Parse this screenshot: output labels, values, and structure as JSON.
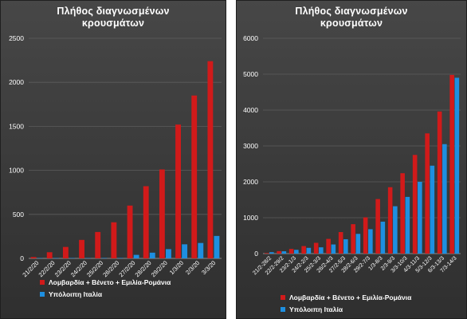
{
  "colors": {
    "red": "#d11a1a",
    "blue": "#1e8fe0"
  },
  "chart_data": [
    {
      "type": "bar",
      "title_lines": [
        "Πλήθος διαγνωσμένων",
        "κρουσμάτων"
      ],
      "categories": [
        "21/2/20",
        "22/2/20",
        "23/2/20",
        "24/2/20",
        "25/2/20",
        "26/2/20",
        "27/2/20",
        "28/2/20",
        "29/2/20",
        "1/3/20",
        "2/3/20",
        "3/3/20"
      ],
      "series": [
        {
          "name": "Λομβαρδία + Βένετο + Εμιλία-Ρομάνια",
          "color": "#d11a1a",
          "values": [
            15,
            70,
            130,
            210,
            300,
            410,
            600,
            820,
            1010,
            1520,
            1850,
            2240
          ]
        },
        {
          "name": "Υπόλοιπη Ιταλία",
          "color": "#1e8fe0",
          "values": [
            0,
            0,
            2,
            2,
            5,
            5,
            40,
            65,
            105,
            160,
            175,
            255
          ]
        }
      ],
      "yticks": [
        0,
        500,
        1000,
        1500,
        2000,
        2500
      ],
      "ylim": [
        0,
        2500
      ],
      "grid": true,
      "legend_position": "bottom"
    },
    {
      "type": "bar",
      "title_lines": [
        "Πλήθος διαγνωσμένων",
        "κρουσμάτων"
      ],
      "categories": [
        "21/2-28/2",
        "22/2-29/2",
        "23/2-1/3",
        "24/2-2/3",
        "25/2-3/3",
        "26/2-4/3",
        "27/2-5/3",
        "28/2-6/3",
        "29/2-7/3",
        "1/3-8/3",
        "2/3-9/3",
        "3/3-10/3",
        "4/3-11/3",
        "5/3-12/3",
        "6/3-13/3",
        "7/3-14/3"
      ],
      "series": [
        {
          "name": "Λομβαρδία + Βένετο + Εμιλία-Ρομάνια",
          "color": "#d11a1a",
          "values": [
            15,
            70,
            130,
            210,
            300,
            410,
            600,
            820,
            1010,
            1520,
            1850,
            2240,
            2750,
            3350,
            3960,
            4980
          ]
        },
        {
          "name": "Υπόλοιπη Ιταλία",
          "color": "#1e8fe0",
          "values": [
            40,
            65,
            105,
            160,
            175,
            255,
            400,
            550,
            680,
            890,
            1320,
            1580,
            2000,
            2450,
            3050,
            4900
          ]
        }
      ],
      "yticks": [
        0,
        1000,
        2000,
        3000,
        4000,
        5000,
        6000
      ],
      "ylim": [
        0,
        6000
      ],
      "grid": true,
      "legend_position": "bottom"
    }
  ]
}
